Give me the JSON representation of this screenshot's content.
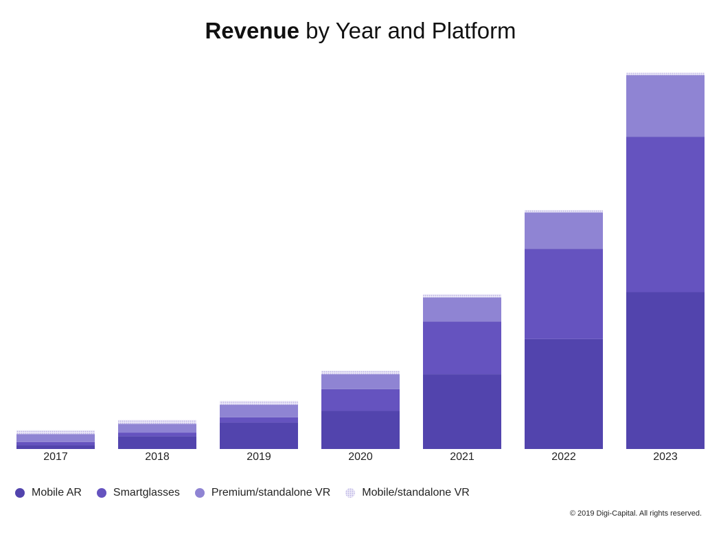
{
  "title": {
    "bold": "Revenue",
    "rest": " by Year and Platform"
  },
  "copyright": "© 2019 Digi-Capital. All rights reserved.",
  "chart_data": {
    "type": "bar",
    "stacked": true,
    "title": "Revenue by Year and Platform",
    "categories": [
      "2017",
      "2018",
      "2019",
      "2020",
      "2021",
      "2022",
      "2023"
    ],
    "series": [
      {
        "name": "Mobile AR",
        "color": "#5244ad",
        "values": [
          1.3,
          4.4,
          9.0,
          13.0,
          25.5,
          37.5,
          53.5
        ]
      },
      {
        "name": "Smartglasses",
        "color": "#6553bf",
        "values": [
          1.1,
          1.2,
          1.8,
          7.4,
          18.0,
          30.8,
          53.0
        ]
      },
      {
        "name": "Premium/standalone VR",
        "color": "#8f84d3",
        "values": [
          2.7,
          3.0,
          4.3,
          5.1,
          8.2,
          12.4,
          21.0
        ]
      },
      {
        "name": "Mobile/standalone VR",
        "color": "#d3cdee",
        "values": [
          1.3,
          1.3,
          1.3,
          1.2,
          1.1,
          0.8,
          0.8
        ]
      }
    ],
    "axes": {
      "y_visible": false,
      "grid": false
    },
    "legend": {
      "position": "bottom-left"
    }
  }
}
